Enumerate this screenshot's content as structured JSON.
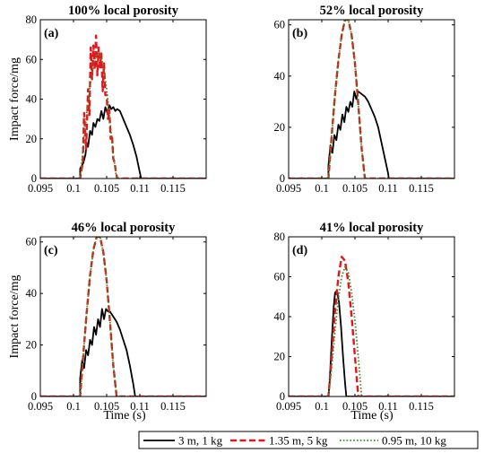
{
  "figure": {
    "shared_xlabel": "Time (s)"
  },
  "legend": {
    "position": "bottom-center",
    "entries": [
      {
        "label": "3 m, 1 kg",
        "color": "#000000",
        "dash": "solid"
      },
      {
        "label": "1.35 m, 5 kg",
        "color": "#e8141c",
        "dash": "dashed"
      },
      {
        "label": "0.95 m, 10 kg",
        "color": "#3a8c28",
        "dash": "dotted"
      }
    ]
  },
  "chart_data": [
    {
      "type": "line",
      "title": "100% local porosity",
      "panel_label": "(a)",
      "xlabel": "",
      "ylabel": "Impact force/mg",
      "xlim": [
        0.095,
        0.12
      ],
      "ylim": [
        0,
        80
      ],
      "xticks": [
        "0.095",
        "0.1",
        "0.105",
        "0.11",
        "0.115"
      ],
      "yticks": [
        "0",
        "20",
        "40",
        "60",
        "80"
      ],
      "series": [
        {
          "name": "3 m, 1 kg",
          "x": [
            0.095,
            0.101,
            0.101,
            0.1015,
            0.1018,
            0.102,
            0.1022,
            0.1025,
            0.1028,
            0.103,
            0.1033,
            0.1036,
            0.1039,
            0.1042,
            0.1045,
            0.1048,
            0.1051,
            0.1054,
            0.1057,
            0.106,
            0.1063,
            0.1066,
            0.107,
            0.1075,
            0.108,
            0.1085,
            0.109,
            0.1095,
            0.11,
            0.1102,
            0.12
          ],
          "y": [
            0,
            0,
            5,
            8,
            12,
            18,
            16,
            24,
            22,
            28,
            26,
            30,
            29,
            34,
            30,
            36,
            33,
            37,
            35,
            36,
            34,
            35,
            34,
            30,
            26,
            22,
            17,
            11,
            3,
            0,
            0
          ]
        },
        {
          "name": "1.35 m, 5 kg",
          "x": [
            0.095,
            0.101,
            0.1014,
            0.1016,
            0.1019,
            0.1022,
            0.1024,
            0.1026,
            0.1028,
            0.103,
            0.1032,
            0.1034,
            0.1036,
            0.1038,
            0.104,
            0.1042,
            0.1044,
            0.1046,
            0.1048,
            0.105,
            0.1052,
            0.1054,
            0.1056,
            0.1058,
            0.106,
            0.1062,
            0.1064,
            0.1066,
            0.12
          ],
          "y": [
            0,
            0,
            8,
            33,
            15,
            45,
            32,
            66,
            50,
            67,
            55,
            72,
            52,
            66,
            56,
            63,
            44,
            58,
            42,
            42,
            30,
            35,
            20,
            22,
            10,
            8,
            3,
            0,
            0
          ]
        },
        {
          "name": "0.95 m, 10 kg",
          "x": [
            0.095,
            0.101,
            0.1015,
            0.102,
            0.1025,
            0.103,
            0.1035,
            0.104,
            0.1045,
            0.105,
            0.1055,
            0.106,
            0.1065,
            0.12
          ],
          "y": [
            0,
            0,
            17,
            33,
            47,
            57,
            63,
            63,
            57,
            45,
            29,
            12,
            0,
            0
          ]
        }
      ]
    },
    {
      "type": "line",
      "title": "52% local porosity",
      "panel_label": "(b)",
      "xlabel": "",
      "ylabel": "",
      "xlim": [
        0.095,
        0.12
      ],
      "ylim": [
        0,
        62
      ],
      "xticks": [
        "0.095",
        "0.1",
        "0.105",
        "0.11",
        "0.115"
      ],
      "yticks": [
        "0",
        "20",
        "40",
        "60"
      ],
      "series": [
        {
          "name": "3 m, 1 kg",
          "x": [
            0.095,
            0.101,
            0.101,
            0.1013,
            0.1016,
            0.1019,
            0.1022,
            0.1025,
            0.1028,
            0.1031,
            0.1034,
            0.1037,
            0.104,
            0.1043,
            0.1046,
            0.1049,
            0.1052,
            0.1055,
            0.106,
            0.1065,
            0.107,
            0.1075,
            0.108,
            0.1085,
            0.109,
            0.1095,
            0.11,
            0.1101,
            0.12
          ],
          "y": [
            0,
            0,
            5,
            13,
            10,
            17,
            15,
            21,
            19,
            25,
            22,
            28,
            26,
            30,
            28,
            34,
            31,
            34,
            33,
            32,
            30,
            27,
            24,
            20,
            14,
            8,
            2,
            0,
            0
          ]
        },
        {
          "name": "1.35 m, 5 kg",
          "x": [
            0.095,
            0.101,
            0.1015,
            0.102,
            0.1025,
            0.103,
            0.1035,
            0.104,
            0.1045,
            0.105,
            0.1055,
            0.106,
            0.1065,
            0.12
          ],
          "y": [
            0,
            0,
            17,
            33,
            46,
            56,
            62,
            62,
            56,
            45,
            29,
            12,
            0,
            0
          ]
        },
        {
          "name": "0.95 m, 10 kg",
          "x": [
            0.095,
            0.101,
            0.1015,
            0.102,
            0.1025,
            0.103,
            0.1035,
            0.104,
            0.1045,
            0.105,
            0.1055,
            0.106,
            0.1065,
            0.12
          ],
          "y": [
            0,
            0,
            17,
            33,
            46,
            56,
            62,
            62,
            56,
            45,
            29,
            12,
            0,
            0
          ]
        }
      ]
    },
    {
      "type": "line",
      "title": "46% local porosity",
      "panel_label": "(c)",
      "xlabel": "",
      "ylabel": "Impact force/mg",
      "xlim": [
        0.095,
        0.12
      ],
      "ylim": [
        0,
        62
      ],
      "xticks": [
        "0.095",
        "0.1",
        "0.105",
        "0.11",
        "0.115"
      ],
      "yticks": [
        "0",
        "20",
        "40",
        "60"
      ],
      "series": [
        {
          "name": "3 m, 1 kg",
          "x": [
            0.095,
            0.101,
            0.101,
            0.1013,
            0.1016,
            0.1019,
            0.1022,
            0.1025,
            0.1028,
            0.1031,
            0.1034,
            0.1037,
            0.104,
            0.1043,
            0.1046,
            0.1049,
            0.1052,
            0.1055,
            0.106,
            0.1065,
            0.107,
            0.1075,
            0.108,
            0.1085,
            0.109,
            0.1093,
            0.12
          ],
          "y": [
            0,
            0,
            7,
            14,
            11,
            18,
            16,
            22,
            20,
            27,
            24,
            30,
            27,
            34,
            30,
            34,
            33,
            33,
            31,
            29,
            26,
            22,
            18,
            12,
            5,
            0,
            0
          ]
        },
        {
          "name": "1.35 m, 5 kg",
          "x": [
            0.095,
            0.101,
            0.1015,
            0.102,
            0.1025,
            0.103,
            0.1035,
            0.104,
            0.1045,
            0.105,
            0.1055,
            0.106,
            0.1065,
            0.12
          ],
          "y": [
            0,
            0,
            17,
            33,
            47,
            57,
            62,
            62,
            56,
            45,
            29,
            12,
            0,
            0
          ]
        },
        {
          "name": "0.95 m, 10 kg",
          "x": [
            0.095,
            0.101,
            0.1015,
            0.102,
            0.1025,
            0.103,
            0.1035,
            0.104,
            0.1045,
            0.105,
            0.1055,
            0.106,
            0.1065,
            0.12
          ],
          "y": [
            0,
            0,
            17,
            33,
            47,
            57,
            62,
            62,
            56,
            45,
            29,
            12,
            0,
            0
          ]
        }
      ]
    },
    {
      "type": "line",
      "title": "41% local porosity",
      "panel_label": "(d)",
      "xlabel": "",
      "ylabel": "",
      "xlim": [
        0.095,
        0.12
      ],
      "ylim": [
        0,
        80
      ],
      "xticks": [
        "0.095",
        "0.1",
        "0.105",
        "0.11",
        "0.115"
      ],
      "yticks": [
        "0",
        "20",
        "40",
        "60",
        "80"
      ],
      "series": [
        {
          "name": "3 m, 1 kg",
          "x": [
            0.095,
            0.101,
            0.1012,
            0.1015,
            0.1018,
            0.102,
            0.1023,
            0.1026,
            0.1029,
            0.1032,
            0.1035,
            0.1037,
            0.12
          ],
          "y": [
            0,
            0,
            8,
            28,
            45,
            52,
            53,
            47,
            35,
            20,
            7,
            0,
            0
          ]
        },
        {
          "name": "1.35 m, 5 kg",
          "x": [
            0.095,
            0.101,
            0.1015,
            0.102,
            0.1025,
            0.103,
            0.1035,
            0.104,
            0.1045,
            0.105,
            0.1055,
            0.12
          ],
          "y": [
            0,
            0,
            20,
            43,
            60,
            70,
            68,
            57,
            40,
            20,
            0,
            0
          ]
        },
        {
          "name": "0.95 m, 10 kg",
          "x": [
            0.095,
            0.101,
            0.1015,
            0.102,
            0.1025,
            0.103,
            0.1035,
            0.104,
            0.1045,
            0.105,
            0.1055,
            0.106,
            0.12
          ],
          "y": [
            0,
            0,
            15,
            33,
            49,
            60,
            65,
            62,
            52,
            38,
            20,
            0,
            0
          ]
        }
      ]
    }
  ]
}
